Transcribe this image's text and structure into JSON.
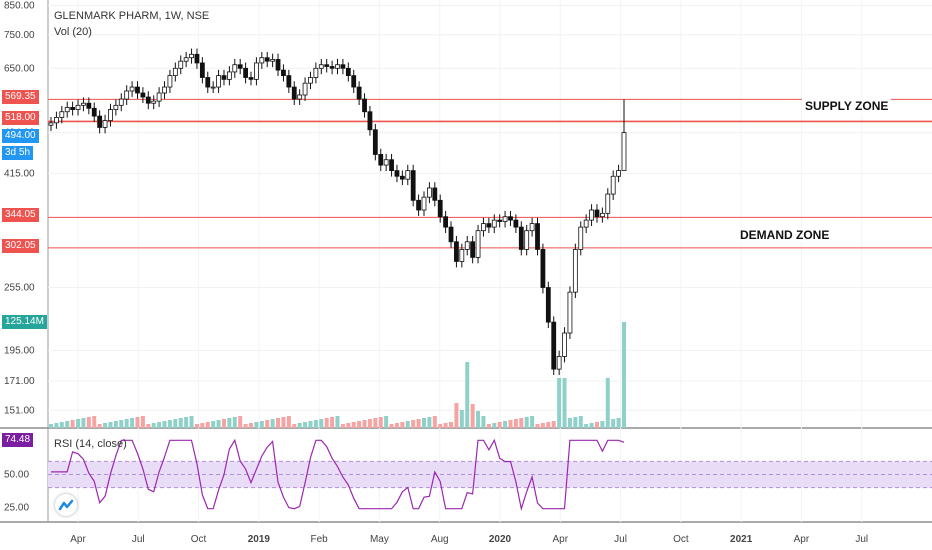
{
  "header": {
    "symbol_line": "GLENMARK PHARM, 1W, NSE",
    "vol_line": "Vol (20)",
    "rsi_line": "RSI (14, close)"
  },
  "annotations": {
    "supply_zone": "SUPPLY ZONE",
    "demand_zone": "DEMAND ZONE"
  },
  "tags": {
    "level1": "569.35",
    "level2": "518.00",
    "price": "494.00",
    "countdown": "3d 5h",
    "level3": "344.05",
    "level4": "302.05",
    "volume": "125.14M",
    "rsi": "74.48"
  },
  "colors": {
    "line_red": "#ef5350",
    "tag_red": "#ef5350",
    "tag_blue": "#2196f3",
    "tag_teal": "#26a69a",
    "tag_purple": "#7b1fa2",
    "rsi_line": "#9c27b0",
    "rsi_band": "#e9dcf7"
  },
  "chart_data": {
    "type": "candlestick",
    "price_axis": {
      "scale": "log",
      "ticks": [
        "850.00",
        "750.00",
        "650.00",
        "569.35",
        "518.00",
        "494.00",
        "415.00",
        "344.05",
        "302.05",
        "255.00",
        "195.00",
        "171.00",
        "151.00"
      ],
      "ylim": [
        140,
        870
      ]
    },
    "x_axis_labels": [
      "Apr",
      "Jul",
      "Oct",
      "2019",
      "Feb",
      "May",
      "Aug",
      "2020",
      "Apr",
      "Jul",
      "Oct",
      "2021",
      "Apr",
      "Jul"
    ],
    "horizontal_levels": [
      569.35,
      518.0,
      344.05,
      302.05
    ],
    "candles_close": [
      515,
      527,
      540,
      550,
      545,
      555,
      560,
      548,
      530,
      505,
      520,
      545,
      555,
      570,
      590,
      600,
      585,
      575,
      560,
      565,
      585,
      600,
      630,
      650,
      670,
      680,
      690,
      665,
      625,
      600,
      600,
      630,
      620,
      640,
      660,
      650,
      625,
      620,
      665,
      680,
      670,
      675,
      645,
      630,
      600,
      570,
      580,
      610,
      625,
      650,
      660,
      655,
      650,
      660,
      650,
      630,
      600,
      570,
      540,
      500,
      450,
      430,
      440,
      420,
      410,
      405,
      420,
      370,
      355,
      375,
      390,
      370,
      345,
      330,
      310,
      285,
      300,
      310,
      290,
      325,
      335,
      330,
      340,
      338,
      345,
      340,
      330,
      300,
      325,
      335,
      300,
      255,
      220,
      180,
      190,
      210,
      250,
      300,
      330,
      340,
      355,
      345,
      350,
      380,
      410,
      420,
      494
    ],
    "rsi": {
      "ticks": [
        "50.00",
        "25.00"
      ],
      "band": [
        40,
        60
      ],
      "last": 74.48
    },
    "volume_last": "125.14M"
  }
}
